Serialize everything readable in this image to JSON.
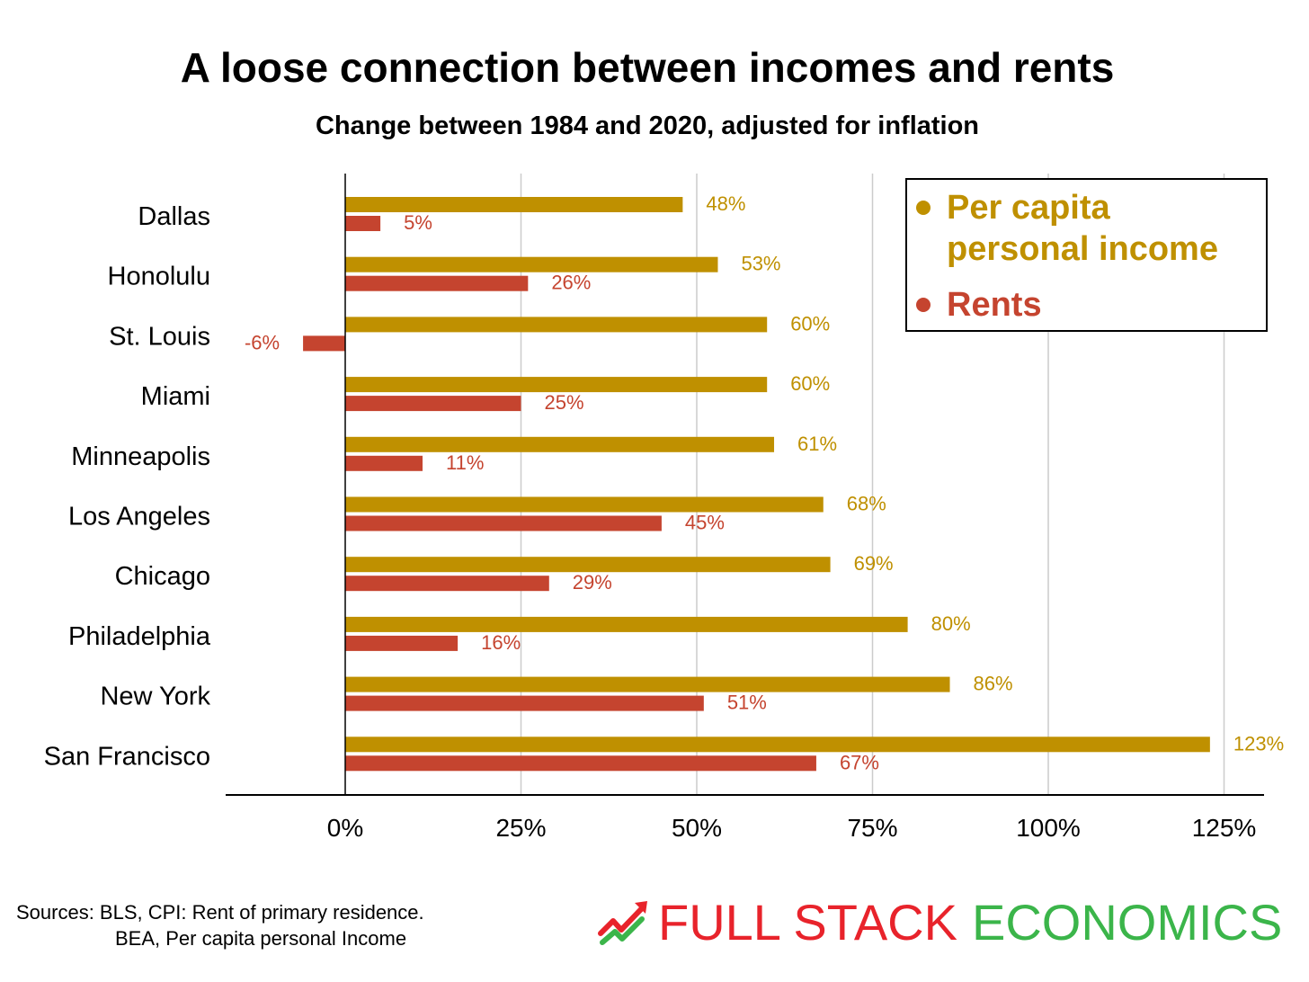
{
  "header": {
    "title": "A loose connection between incomes and rents",
    "subtitle": "Change between 1984 and 2020, adjusted for inflation"
  },
  "chart_data": {
    "type": "bar",
    "orientation": "horizontal",
    "title": "A loose connection between incomes and rents",
    "subtitle": "Change between 1984 and 2020, adjusted for inflation",
    "categories": [
      "Dallas",
      "Honolulu",
      "St. Louis",
      "Miami",
      "Minneapolis",
      "Los Angeles",
      "Chicago",
      "Philadelphia",
      "New York",
      "San Francisco"
    ],
    "series": [
      {
        "name": "Per capita personal income",
        "color": "#BF9000",
        "values": [
          48,
          53,
          60,
          60,
          61,
          68,
          69,
          80,
          86,
          123
        ],
        "labels": [
          "48%",
          "53%",
          "60%",
          "60%",
          "61%",
          "68%",
          "69%",
          "80%",
          "86%",
          "123%"
        ]
      },
      {
        "name": "Rents",
        "color": "#C5442F",
        "values": [
          5,
          26,
          -6,
          25,
          11,
          45,
          29,
          16,
          51,
          67
        ],
        "labels": [
          "5%",
          "26%",
          "-6%",
          "25%",
          "11%",
          "45%",
          "29%",
          "16%",
          "51%",
          "67%"
        ]
      }
    ],
    "xlim": [
      -17,
      131
    ],
    "xticks": [
      0,
      25,
      50,
      75,
      100,
      125
    ],
    "xtick_labels": [
      "0%",
      "25%",
      "50%",
      "75%",
      "100%",
      "125%"
    ],
    "grid": true,
    "legend_position": "top-right"
  },
  "legend": {
    "items": [
      {
        "label": "Per capita\npersonal income",
        "color": "#BF9000"
      },
      {
        "label": "Rents",
        "color": "#C5442F"
      }
    ]
  },
  "footer": {
    "source_line1": "Sources: BLS, CPI: Rent of primary residence.",
    "source_line2": "BEA, Per capita personal Income",
    "brand_part1": "FULL STACK",
    "brand_part2": "ECONOMICS",
    "brand_color1": "#E8232B",
    "brand_color2": "#3BB54A"
  }
}
